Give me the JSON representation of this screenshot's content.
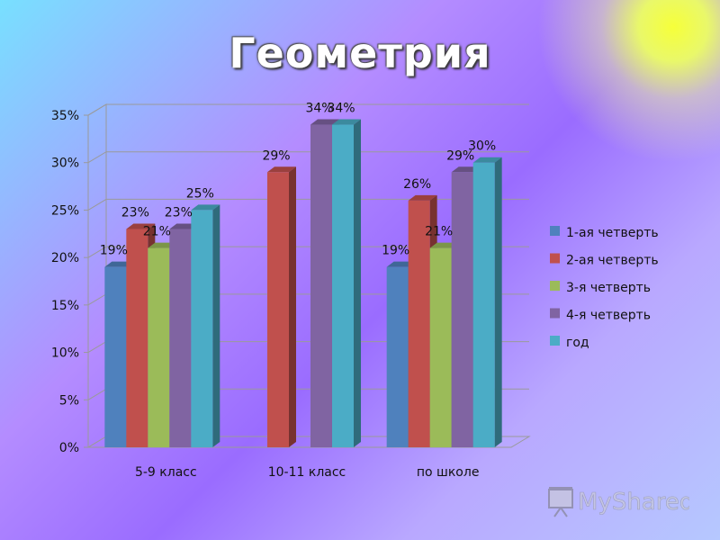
{
  "chart_data": {
    "type": "bar",
    "title": "Геометрия",
    "categories": [
      "5-9 класс",
      "10-11 класс",
      "по школе"
    ],
    "series": [
      {
        "name": "1-ая четверть",
        "color": "#4f81bd",
        "values": [
          19,
          null,
          19
        ]
      },
      {
        "name": "2-ая четверть",
        "color": "#c0504d",
        "values": [
          23,
          29,
          26
        ]
      },
      {
        "name": "3-я четверть",
        "color": "#9bbb59",
        "values": [
          21,
          null,
          21
        ]
      },
      {
        "name": "4-я четверть",
        "color": "#8064a2",
        "values": [
          23,
          34,
          29
        ]
      },
      {
        "name": "год",
        "color": "#4bacc6",
        "values": [
          25,
          34,
          30
        ]
      }
    ],
    "ylim": [
      0,
      35
    ],
    "yticks": [
      "0%",
      "5%",
      "10%",
      "15%",
      "20%",
      "25%",
      "30%",
      "35%"
    ],
    "ystep": 5,
    "value_suffix": "%",
    "grid": true,
    "legend_position": "right",
    "style": "3d-clustered-column"
  },
  "watermark": {
    "text": "MyShared"
  }
}
